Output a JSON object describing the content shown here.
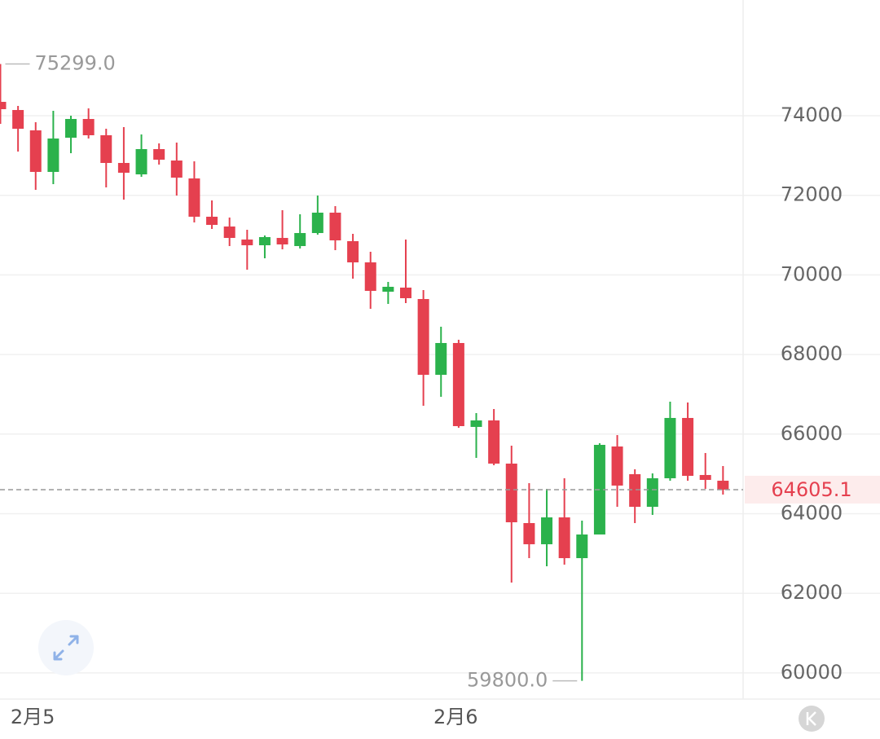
{
  "chart_data": {
    "type": "candlestick",
    "categories": [
      null,
      "2月5",
      null,
      null,
      null,
      null,
      null,
      null,
      null,
      null,
      null,
      null,
      null,
      null,
      null,
      null,
      null,
      null,
      null,
      null,
      null,
      null,
      null,
      null,
      null,
      "2月6",
      null,
      null,
      null,
      null,
      null,
      null,
      null,
      null,
      null,
      null,
      null,
      null,
      null,
      null,
      null,
      null
    ],
    "open": [
      74348,
      74143,
      73632,
      72588,
      73447,
      73918,
      73509,
      72813,
      72526,
      73161,
      72874,
      72424,
      71462,
      71216,
      70889,
      70745,
      70929,
      70725,
      71052,
      71564,
      70848,
      70315,
      69578,
      69681,
      69394,
      67490,
      68289,
      66181,
      66344,
      65259,
      63765,
      63233,
      63908,
      62884,
      63478,
      65689,
      64993,
      64174,
      64891,
      66406,
      64973,
      64829
    ],
    "high": [
      75299,
      74246,
      73836,
      74123,
      74000,
      74184,
      73672,
      73713,
      73529,
      73304,
      73325,
      72854,
      71871,
      71441,
      71134,
      70991,
      71626,
      71523,
      71994,
      71728,
      71032,
      70582,
      69824,
      70889,
      69619,
      68698,
      68371,
      66528,
      66631,
      65710,
      64768,
      64625,
      64891,
      63826,
      65771,
      65976,
      65116,
      65013,
      66815,
      66794,
      65525,
      65198
    ],
    "low": [
      73795,
      73099,
      72137,
      72280,
      73058,
      73427,
      72199,
      71892,
      72465,
      72772,
      71994,
      71318,
      71155,
      70725,
      70131,
      70418,
      70643,
      70664,
      71011,
      70622,
      69906,
      69149,
      69271,
      69292,
      66713,
      66938,
      66160,
      65403,
      65218,
      62270,
      62884,
      62680,
      62721,
      59800,
      63478,
      64174,
      63765,
      63970,
      64829,
      64829,
      64625,
      64481
    ],
    "close": [
      74164,
      73672,
      72588,
      73427,
      73918,
      73509,
      72813,
      72567,
      73161,
      72895,
      72444,
      71462,
      71257,
      70929,
      70745,
      70950,
      70766,
      71052,
      71564,
      70868,
      70315,
      69599,
      69701,
      69415,
      67490,
      68289,
      66201,
      66344,
      65259,
      63785,
      63233,
      63908,
      62884,
      63478,
      65730,
      64707,
      64174,
      64891,
      66406,
      64952,
      64850,
      64605.1
    ],
    "up_color": "#2bb24c",
    "down_color": "#e5404f",
    "ylim": [
      59343,
      76907
    ],
    "yticks": [
      60000,
      62000,
      64000,
      66000,
      68000,
      70000,
      72000,
      74000
    ],
    "grid": true,
    "extremes": [
      {
        "value": 75299,
        "label": "75299.0"
      },
      {
        "value": 59800,
        "label": "59800.0"
      }
    ],
    "current_price": 64605.1
  }
}
